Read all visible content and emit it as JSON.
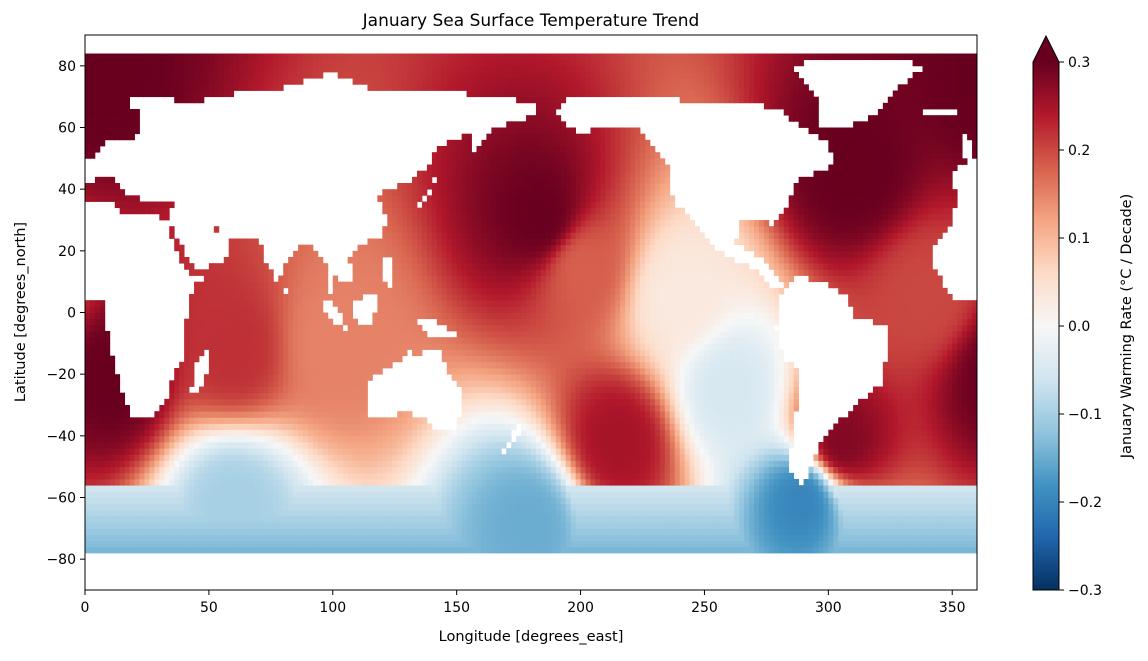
{
  "chart_data": {
    "type": "heatmap",
    "title": "January Sea Surface Temperature Trend",
    "xlabel": "Longitude [degrees_east]",
    "ylabel": "Latitude [degrees_north]",
    "xlim": [
      0,
      360
    ],
    "ylim": [
      -90,
      90
    ],
    "xticks": [
      0,
      50,
      100,
      150,
      200,
      250,
      300,
      350
    ],
    "yticks": [
      80,
      60,
      40,
      20,
      0,
      -20,
      -40,
      -60,
      -80
    ],
    "xtick_labels": [
      "0",
      "50",
      "100",
      "150",
      "200",
      "250",
      "300",
      "350"
    ],
    "ytick_labels": [
      "80",
      "60",
      "40",
      "20",
      "0",
      "−20",
      "−40",
      "−60",
      "−80"
    ],
    "colorbar": {
      "label": "January Warming Rate (°C / Decade)",
      "vmin": -0.3,
      "vmax": 0.3,
      "extend": "max",
      "colormap": "RdBu_r",
      "ticks": [
        0.3,
        0.2,
        0.1,
        0.0,
        -0.1,
        -0.2,
        -0.3
      ],
      "tick_labels": [
        "0.3",
        "0.2",
        "0.1",
        "0.0",
        "−0.1",
        "−0.2",
        "−0.3"
      ]
    },
    "grid": false,
    "grid_resolution_deg": 2,
    "ocean_mask_lat_range": [
      -78,
      84
    ],
    "regional_values": [
      {
        "lon": 5,
        "lat": 75,
        "value": 0.3
      },
      {
        "lon": 10,
        "lat": -20,
        "value": 0.3
      },
      {
        "lon": 60,
        "lat": -12,
        "value": 0.22
      },
      {
        "lon": 100,
        "lat": -10,
        "value": 0.15
      },
      {
        "lon": 185,
        "lat": 30,
        "value": 0.3
      },
      {
        "lon": 200,
        "lat": 15,
        "value": 0.18
      },
      {
        "lon": 240,
        "lat": 5,
        "value": 0.03
      },
      {
        "lon": 215,
        "lat": -42,
        "value": 0.25
      },
      {
        "lon": 260,
        "lat": -25,
        "value": -0.05
      },
      {
        "lon": 310,
        "lat": 45,
        "value": 0.3
      },
      {
        "lon": 340,
        "lat": 5,
        "value": 0.2
      },
      {
        "lon": 305,
        "lat": -42,
        "value": 0.28
      },
      {
        "lon": 290,
        "lat": -60,
        "value": -0.2
      },
      {
        "lon": 180,
        "lat": -68,
        "value": -0.15
      },
      {
        "lon": 60,
        "lat": -62,
        "value": -0.1
      }
    ]
  }
}
